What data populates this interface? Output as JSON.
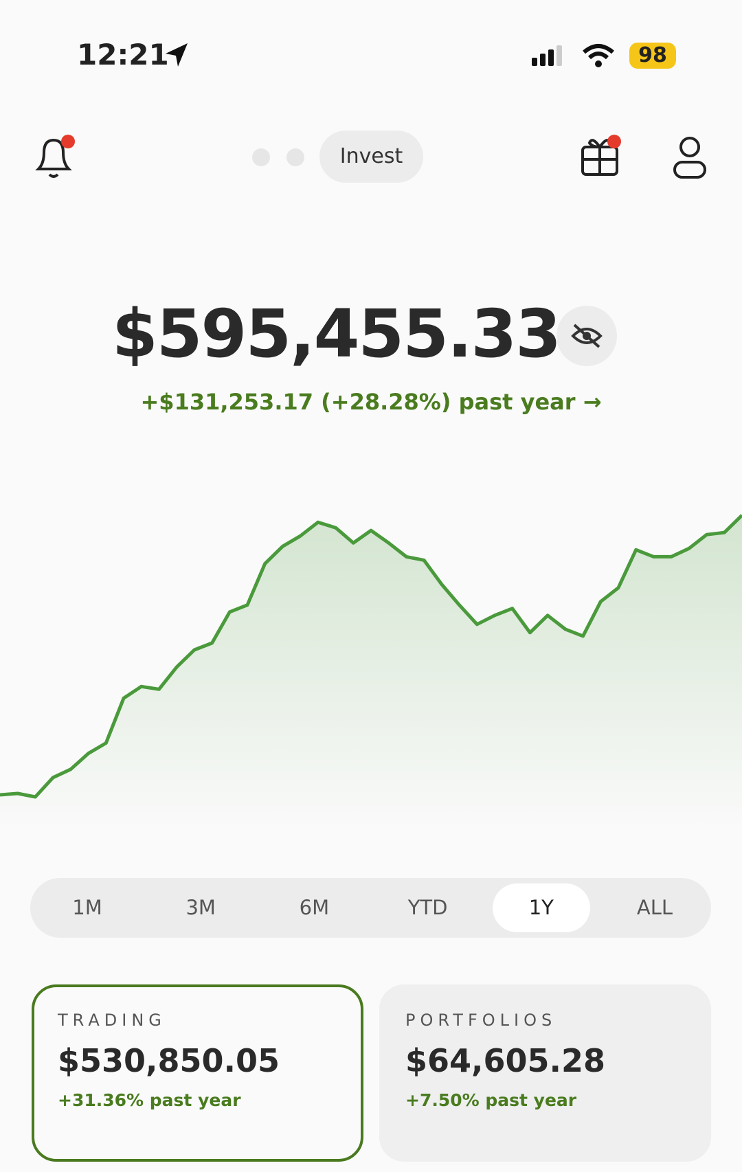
{
  "status_bar": {
    "time": "12:21",
    "battery": "98"
  },
  "header": {
    "tab": "Invest"
  },
  "balance": {
    "total": "$595,455.33",
    "change": "+$131,253.17 (+28.28%) past year"
  },
  "chart": {
    "type": "line",
    "color": "#4a9a3c",
    "values": [
      464202.16,
      464850,
      463230,
      472300,
      476190,
      483640,
      488500,
      509560,
      515070,
      513770,
      524140,
      532240,
      535480,
      550060,
      553300,
      572740,
      580840,
      585700,
      592180,
      589590,
      582460,
      588290,
      582460,
      575980,
      574360,
      563020,
      553300,
      544230,
      548440,
      551680,
      540340,
      548440,
      541960,
      538720,
      554920,
      561400,
      579220,
      575980,
      575980,
      579870,
      586350,
      587320,
      595455.33
    ]
  },
  "ranges": {
    "options": [
      "1M",
      "3M",
      "6M",
      "YTD",
      "1Y",
      "ALL"
    ],
    "selected_index": 4
  },
  "accounts": {
    "selected_index": 0,
    "items": [
      {
        "label": "TRADING",
        "value": "$530,850.05",
        "change": "+31.36% past year"
      },
      {
        "label": "PORTFOLIOS",
        "value": "$64,605.28",
        "change": "+7.50% past year"
      }
    ]
  }
}
